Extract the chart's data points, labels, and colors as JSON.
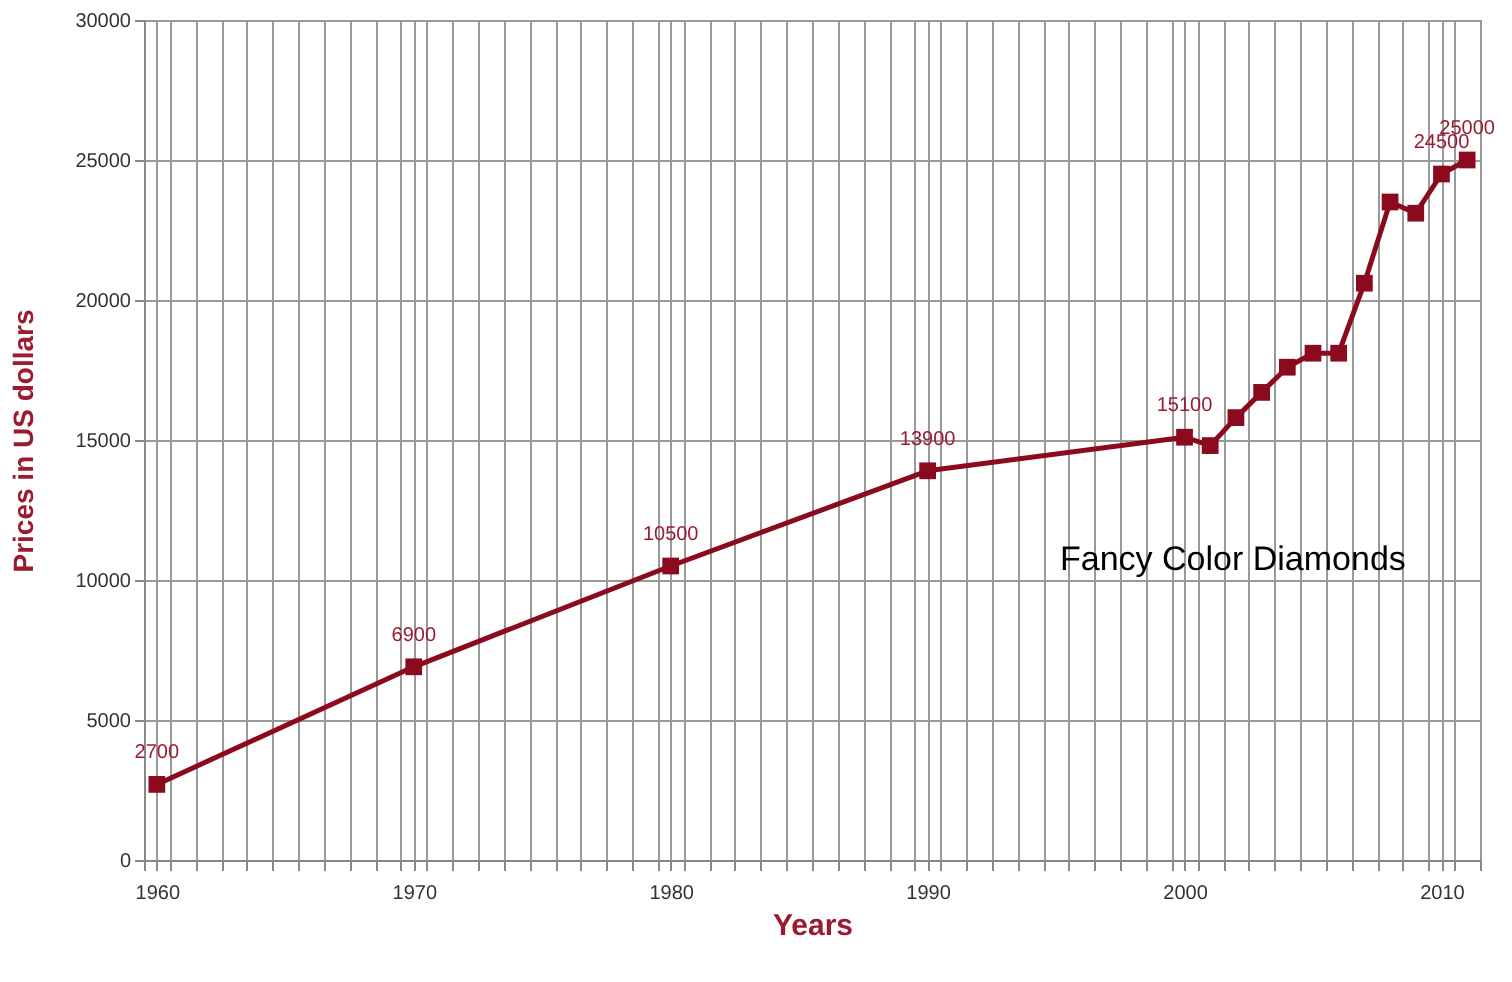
{
  "chart_data": {
    "type": "line",
    "xlabel": "Years",
    "ylabel": "Prices in US dollars",
    "annotations": [
      "Fancy Color Diamonds"
    ],
    "x": [
      1960,
      1970,
      1980,
      1990,
      2000,
      2001,
      2002,
      2003,
      2004,
      2005,
      2006,
      2007,
      2008,
      2009,
      2010,
      2011
    ],
    "series": [
      {
        "color": "#8b0a1e",
        "values": [
          2700,
          6900,
          10500,
          13900,
          15100,
          14800,
          15800,
          16700,
          17600,
          18100,
          18100,
          20600,
          23500,
          23100,
          24500,
          25000
        ],
        "value_labels": [
          "2700",
          "6900",
          "10500",
          "13900",
          "15100",
          null,
          null,
          null,
          null,
          null,
          null,
          null,
          null,
          null,
          "24500",
          "25000"
        ]
      }
    ],
    "xlim": [
      1959.5,
      2011.5
    ],
    "xticks": [
      1960,
      1970,
      1980,
      1990,
      2000,
      2010,
      {
        "value": 1959.5,
        "label": null
      },
      {
        "value": 1960.5,
        "label": null
      },
      {
        "value": 1961.5,
        "label": null
      },
      {
        "value": 1962.5,
        "label": null
      },
      {
        "value": 1963.5,
        "label": null
      },
      {
        "value": 1964.5,
        "label": null
      },
      {
        "value": 1965.5,
        "label": null
      },
      {
        "value": 1966.5,
        "label": null
      },
      {
        "value": 1967.5,
        "label": null
      },
      {
        "value": 1968.5,
        "label": null
      },
      {
        "value": 1969.5,
        "label": null
      },
      {
        "value": 1970.5,
        "label": null
      },
      {
        "value": 1971.5,
        "label": null
      },
      {
        "value": 1972.5,
        "label": null
      },
      {
        "value": 1973.5,
        "label": null
      },
      {
        "value": 1974.5,
        "label": null
      },
      {
        "value": 1975.5,
        "label": null
      },
      {
        "value": 1976.5,
        "label": null
      },
      {
        "value": 1977.5,
        "label": null
      },
      {
        "value": 1978.5,
        "label": null
      },
      {
        "value": 1979.5,
        "label": null
      },
      {
        "value": 1980.5,
        "label": null
      },
      {
        "value": 1981.5,
        "label": null
      },
      {
        "value": 1982.5,
        "label": null
      },
      {
        "value": 1983.5,
        "label": null
      },
      {
        "value": 1984.5,
        "label": null
      },
      {
        "value": 1985.5,
        "label": null
      },
      {
        "value": 1986.5,
        "label": null
      },
      {
        "value": 1987.5,
        "label": null
      },
      {
        "value": 1988.5,
        "label": null
      },
      {
        "value": 1989.5,
        "label": null
      },
      {
        "value": 1990.5,
        "label": null
      },
      {
        "value": 1991.5,
        "label": null
      },
      {
        "value": 1992.5,
        "label": null
      },
      {
        "value": 1993.5,
        "label": null
      },
      {
        "value": 1994.5,
        "label": null
      },
      {
        "value": 1995.5,
        "label": null
      },
      {
        "value": 1996.5,
        "label": null
      },
      {
        "value": 1997.5,
        "label": null
      },
      {
        "value": 1998.5,
        "label": null
      },
      {
        "value": 1999.5,
        "label": null
      },
      {
        "value": 2000.5,
        "label": null
      },
      {
        "value": 2001.5,
        "label": null
      },
      {
        "value": 2002.5,
        "label": null
      },
      {
        "value": 2003.5,
        "label": null
      },
      {
        "value": 2004.5,
        "label": null
      },
      {
        "value": 2005.5,
        "label": null
      },
      {
        "value": 2006.5,
        "label": null
      },
      {
        "value": 2007.5,
        "label": null
      },
      {
        "value": 2008.5,
        "label": null
      },
      {
        "value": 2009.5,
        "label": null
      },
      {
        "value": 2010.5,
        "label": null
      },
      {
        "value": 2011.5,
        "label": null
      }
    ],
    "ylim": [
      0,
      30000
    ],
    "yticks": [
      0,
      5000,
      10000,
      15000,
      20000,
      25000,
      30000
    ],
    "grid": true,
    "marker": "square",
    "line_style": "solid"
  }
}
